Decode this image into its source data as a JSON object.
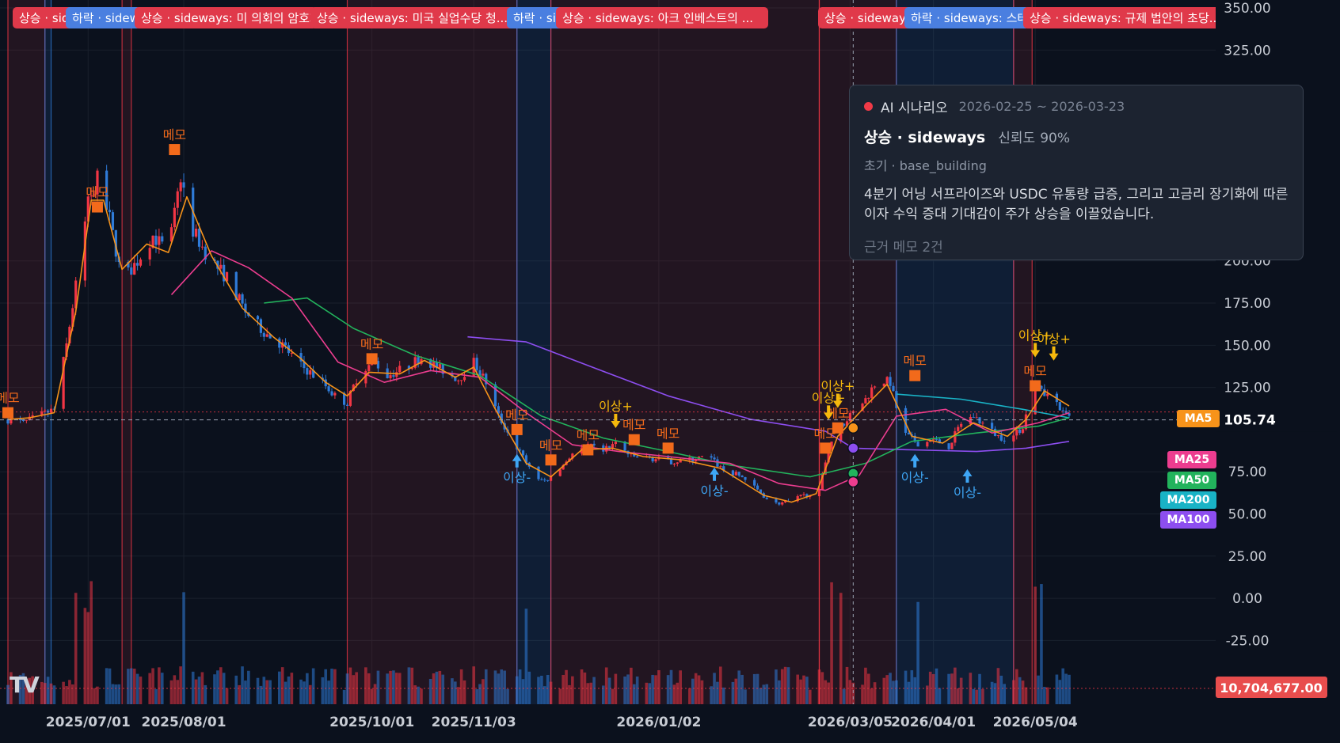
{
  "colors": {
    "background": "#0b111d",
    "up": "#f23645",
    "down": "#2f7bd8",
    "ma5": "#f7931a",
    "ma25": "#ec3d8f",
    "ma50": "#22b35c",
    "ma100": "#8d4ef0",
    "ma200": "#19b3c6",
    "memo": "#f26a1b",
    "anomaly_up": "#f5b80c",
    "anomaly_down": "#3ea6f5",
    "band_up": "#f23645",
    "band_down": "#2f7bd8",
    "price_tag": "#e84d4d"
  },
  "scenario_tags": [
    {
      "text": "상승 · sideways: 미국 상원..."
    },
    {
      "text": "하락 · sideways: ..."
    },
    {
      "text": "상승 · sideways: 미 의회의 암호화..."
    },
    {
      "text": "상승 · sideways: 미국 실업수당 청..."
    },
    {
      "text": "하락 · sideways: ..."
    },
    {
      "text": "상승 · sideways: 아크 인베스트의 ..."
    },
    {
      "text": "상승 · sideways: ..."
    },
    {
      "text": "하락 · sideways: 스테이블..."
    },
    {
      "text": "상승 · sideways: 규제 법안의 초당..."
    }
  ],
  "tooltip": {
    "name": "AI 시나리오",
    "range": "2026-02-25 ~ 2026-03-23",
    "title": "상승 · sideways",
    "confidence_label": "신뢰도",
    "confidence": "90%",
    "phase": "초기 · base_building",
    "body": "4분기 어닝 서프라이즈와 USDC 유통량 급증, 그리고 고금리 장기화에 따른 이자 수익 증대 기대감이 주가 상승을 이끌었습니다.",
    "footer": "근거 메모 2건"
  },
  "ma_badges": [
    {
      "label": "MA5"
    },
    {
      "label": "MA25"
    },
    {
      "label": "MA50"
    },
    {
      "label": "MA200"
    },
    {
      "label": "MA100"
    }
  ],
  "logo": "TV",
  "chart_data": {
    "type": "candlestick",
    "x_start": "2025-06-05",
    "x_end": "2026-05-15",
    "x_ticks": [
      "2025/07/01",
      "2025/08/01",
      "2025/10/01",
      "2025/11/03",
      "2026/01/02",
      "2026/03/05",
      "2026/04/01",
      "2026/05/04"
    ],
    "y_ticks": [
      "350.00",
      "325.00",
      "200.00",
      "175.00",
      "150.00",
      "125.00",
      "75.00",
      "50.00",
      "25.00",
      "0.00",
      "-25.00"
    ],
    "ylim": [
      -45,
      350
    ],
    "last_price": "105.74",
    "last_volume": "10,704,677.00",
    "anchors": [
      [
        "2025-06-05",
        106
      ],
      [
        "2025-06-10",
        104
      ],
      [
        "2025-06-15",
        108
      ],
      [
        "2025-06-20",
        112
      ],
      [
        "2025-06-24",
        150
      ],
      [
        "2025-06-27",
        185
      ],
      [
        "2025-07-01",
        236
      ],
      [
        "2025-07-04",
        248
      ],
      [
        "2025-07-08",
        225
      ],
      [
        "2025-07-12",
        188
      ],
      [
        "2025-07-17",
        200
      ],
      [
        "2025-07-22",
        215
      ],
      [
        "2025-07-27",
        205
      ],
      [
        "2025-07-31",
        250
      ],
      [
        "2025-08-04",
        218
      ],
      [
        "2025-08-09",
        202
      ],
      [
        "2025-08-15",
        190
      ],
      [
        "2025-08-21",
        170
      ],
      [
        "2025-08-27",
        158
      ],
      [
        "2025-09-02",
        150
      ],
      [
        "2025-09-08",
        138
      ],
      [
        "2025-09-15",
        128
      ],
      [
        "2025-09-20",
        118
      ],
      [
        "2025-09-23",
        116
      ],
      [
        "2025-09-27",
        135
      ],
      [
        "2025-10-02",
        140
      ],
      [
        "2025-10-06",
        132
      ],
      [
        "2025-10-12",
        137
      ],
      [
        "2025-10-17",
        143
      ],
      [
        "2025-10-23",
        136
      ],
      [
        "2025-10-29",
        130
      ],
      [
        "2025-11-03",
        140
      ],
      [
        "2025-11-07",
        128
      ],
      [
        "2025-11-11",
        108
      ],
      [
        "2025-11-16",
        92
      ],
      [
        "2025-11-21",
        78
      ],
      [
        "2025-11-25",
        69
      ],
      [
        "2025-11-29",
        72
      ],
      [
        "2025-12-05",
        86
      ],
      [
        "2025-12-10",
        90
      ],
      [
        "2025-12-15",
        88
      ],
      [
        "2025-12-19",
        92
      ],
      [
        "2025-12-24",
        84
      ],
      [
        "2025-12-30",
        83
      ],
      [
        "2026-01-06",
        81
      ],
      [
        "2026-01-12",
        82
      ],
      [
        "2026-01-18",
        84
      ],
      [
        "2026-01-23",
        76
      ],
      [
        "2026-01-29",
        72
      ],
      [
        "2026-02-03",
        64
      ],
      [
        "2026-02-08",
        56
      ],
      [
        "2026-02-13",
        57
      ],
      [
        "2026-02-18",
        61
      ],
      [
        "2026-02-23",
        63
      ],
      [
        "2026-02-26",
        90
      ],
      [
        "2026-03-01",
        100
      ],
      [
        "2026-03-05",
        108
      ],
      [
        "2026-03-10",
        118
      ],
      [
        "2026-03-14",
        130
      ],
      [
        "2026-03-18",
        128
      ],
      [
        "2026-03-22",
        98
      ],
      [
        "2026-03-27",
        92
      ],
      [
        "2026-04-01",
        94
      ],
      [
        "2026-04-06",
        90
      ],
      [
        "2026-04-10",
        104
      ],
      [
        "2026-04-14",
        108
      ],
      [
        "2026-04-18",
        102
      ],
      [
        "2026-04-22",
        96
      ],
      [
        "2026-04-26",
        94
      ],
      [
        "2026-04-30",
        102
      ],
      [
        "2026-05-04",
        128
      ],
      [
        "2026-05-07",
        119
      ],
      [
        "2026-05-10",
        120
      ],
      [
        "2026-05-13",
        109
      ],
      [
        "2026-05-15",
        107
      ]
    ],
    "ma5": [
      [
        "2025-06-05",
        106
      ],
      [
        "2025-06-12",
        107
      ],
      [
        "2025-06-20",
        110
      ],
      [
        "2025-06-27",
        170
      ],
      [
        "2025-07-02",
        236
      ],
      [
        "2025-07-06",
        236
      ],
      [
        "2025-07-12",
        195
      ],
      [
        "2025-07-20",
        210
      ],
      [
        "2025-07-27",
        205
      ],
      [
        "2025-08-02",
        238
      ],
      [
        "2025-08-10",
        203
      ],
      [
        "2025-08-20",
        172
      ],
      [
        "2025-08-30",
        155
      ],
      [
        "2025-09-08",
        142
      ],
      [
        "2025-09-16",
        128
      ],
      [
        "2025-09-23",
        120
      ],
      [
        "2025-09-30",
        134
      ],
      [
        "2025-10-10",
        133
      ],
      [
        "2025-10-18",
        141
      ],
      [
        "2025-10-28",
        131
      ],
      [
        "2025-11-03",
        137
      ],
      [
        "2025-11-10",
        112
      ],
      [
        "2025-11-20",
        80
      ],
      [
        "2025-11-28",
        72
      ],
      [
        "2025-12-08",
        88
      ],
      [
        "2025-12-18",
        89
      ],
      [
        "2025-12-28",
        84
      ],
      [
        "2026-01-10",
        82
      ],
      [
        "2026-01-22",
        77
      ],
      [
        "2026-02-05",
        61
      ],
      [
        "2026-02-14",
        57
      ],
      [
        "2026-02-22",
        62
      ],
      [
        "2026-03-01",
        96
      ],
      [
        "2026-03-10",
        114
      ],
      [
        "2026-03-17",
        127
      ],
      [
        "2026-03-25",
        96
      ],
      [
        "2026-04-04",
        92
      ],
      [
        "2026-04-14",
        104
      ],
      [
        "2026-04-25",
        96
      ],
      [
        "2026-05-01",
        106
      ],
      [
        "2026-05-07",
        123
      ],
      [
        "2026-05-15",
        114
      ]
    ],
    "ma25": [
      [
        "2025-07-28",
        180
      ],
      [
        "2025-08-10",
        206
      ],
      [
        "2025-08-22",
        196
      ],
      [
        "2025-09-05",
        178
      ],
      [
        "2025-09-20",
        140
      ],
      [
        "2025-10-05",
        128
      ],
      [
        "2025-10-20",
        135
      ],
      [
        "2025-11-05",
        131
      ],
      [
        "2025-11-20",
        110
      ],
      [
        "2025-12-05",
        91
      ],
      [
        "2025-12-20",
        87
      ],
      [
        "2026-01-05",
        84
      ],
      [
        "2026-01-25",
        80
      ],
      [
        "2026-02-10",
        68
      ],
      [
        "2026-02-25",
        64
      ],
      [
        "2026-03-08",
        73
      ],
      [
        "2026-03-20",
        108
      ],
      [
        "2026-04-05",
        112
      ],
      [
        "2026-04-20",
        98
      ],
      [
        "2026-05-05",
        104
      ],
      [
        "2026-05-15",
        110
      ]
    ],
    "ma50": [
      [
        "2025-08-27",
        175
      ],
      [
        "2025-09-10",
        178
      ],
      [
        "2025-09-25",
        160
      ],
      [
        "2025-10-15",
        144
      ],
      [
        "2025-11-05",
        132
      ],
      [
        "2025-11-25",
        108
      ],
      [
        "2025-12-15",
        95
      ],
      [
        "2026-01-05",
        87
      ],
      [
        "2026-01-25",
        79
      ],
      [
        "2026-02-20",
        72
      ],
      [
        "2026-03-10",
        80
      ],
      [
        "2026-03-25",
        93
      ],
      [
        "2026-04-15",
        98
      ],
      [
        "2026-05-05",
        102
      ],
      [
        "2026-05-15",
        107
      ]
    ],
    "ma100": [
      [
        "2025-11-01",
        155
      ],
      [
        "2025-11-20",
        152
      ],
      [
        "2025-12-10",
        138
      ],
      [
        "2026-01-05",
        120
      ],
      [
        "2026-02-01",
        106
      ],
      [
        "2026-02-25",
        99
      ],
      [
        "2026-03-06",
        89
      ],
      [
        "2026-03-25",
        88
      ],
      [
        "2026-04-15",
        87
      ],
      [
        "2026-05-01",
        89
      ],
      [
        "2026-05-15",
        93
      ]
    ],
    "ma200": [
      [
        "2026-03-20",
        121
      ],
      [
        "2026-04-10",
        118
      ],
      [
        "2026-04-30",
        112
      ],
      [
        "2026-05-15",
        107
      ]
    ],
    "ma_markers": [
      {
        "date": "2026-03-06",
        "value": 101,
        "series": "ma5"
      },
      {
        "date": "2026-03-06",
        "value": 89,
        "series": "ma100"
      },
      {
        "date": "2026-03-06",
        "value": 74,
        "series": "ma50"
      },
      {
        "date": "2026-03-06",
        "value": 69,
        "series": "ma25"
      }
    ],
    "bands": [
      {
        "start": "2025-06-05",
        "end": "2025-06-17",
        "dir": "up"
      },
      {
        "start": "2025-06-17",
        "end": "2025-06-19",
        "dir": "down"
      },
      {
        "start": "2025-07-12",
        "end": "2025-07-15",
        "dir": "up"
      },
      {
        "start": "2025-09-23",
        "end": "2025-11-17",
        "dir": "up"
      },
      {
        "start": "2025-11-17",
        "end": "2025-11-28",
        "dir": "down"
      },
      {
        "start": "2025-11-28",
        "end": "2026-02-23",
        "dir": "up"
      },
      {
        "start": "2026-02-23",
        "end": "2026-03-20",
        "dir": "up"
      },
      {
        "start": "2026-03-20",
        "end": "2026-04-27",
        "dir": "down"
      },
      {
        "start": "2026-04-27",
        "end": "2026-05-03",
        "dir": "up"
      }
    ],
    "memo_markers": [
      {
        "date": "2025-06-05",
        "value": 110,
        "label": "메모"
      },
      {
        "date": "2025-07-04",
        "value": 232,
        "label": "메모"
      },
      {
        "date": "2025-07-29",
        "value": 266,
        "label": "메모"
      },
      {
        "date": "2025-10-01",
        "value": 142,
        "label": "메모"
      },
      {
        "date": "2025-11-17",
        "value": 100,
        "label": "메모"
      },
      {
        "date": "2025-11-28",
        "value": 82,
        "label": "메모"
      },
      {
        "date": "2025-12-10",
        "value": 88,
        "label": "메모"
      },
      {
        "date": "2025-12-25",
        "value": 94,
        "label": "메모"
      },
      {
        "date": "2026-01-05",
        "value": 89,
        "label": "메모"
      },
      {
        "date": "2026-02-25",
        "value": 89,
        "label": "메모"
      },
      {
        "date": "2026-03-01",
        "value": 101,
        "label": "메모"
      },
      {
        "date": "2026-03-26",
        "value": 132,
        "label": "메모"
      },
      {
        "date": "2026-05-04",
        "value": 126,
        "label": "메모"
      }
    ],
    "anomaly_markers": [
      {
        "date": "2025-11-17",
        "dir": "down",
        "label": "이상-",
        "value": 86
      },
      {
        "date": "2025-12-19",
        "dir": "up",
        "label": "이상+",
        "value": 99
      },
      {
        "date": "2026-01-20",
        "dir": "down",
        "label": "이상-",
        "value": 78
      },
      {
        "date": "2026-02-26",
        "dir": "up",
        "label": "이상+",
        "value": 104
      },
      {
        "date": "2026-03-01",
        "dir": "up",
        "label": "이상+",
        "value": 111
      },
      {
        "date": "2026-03-26",
        "dir": "down",
        "label": "이상-",
        "value": 86
      },
      {
        "date": "2026-04-12",
        "dir": "down",
        "label": "이상-",
        "value": 77
      },
      {
        "date": "2026-05-04",
        "dir": "up",
        "label": "이상+",
        "value": 141
      },
      {
        "date": "2026-05-10",
        "dir": "up",
        "label": "이상+",
        "value": 139
      }
    ]
  }
}
